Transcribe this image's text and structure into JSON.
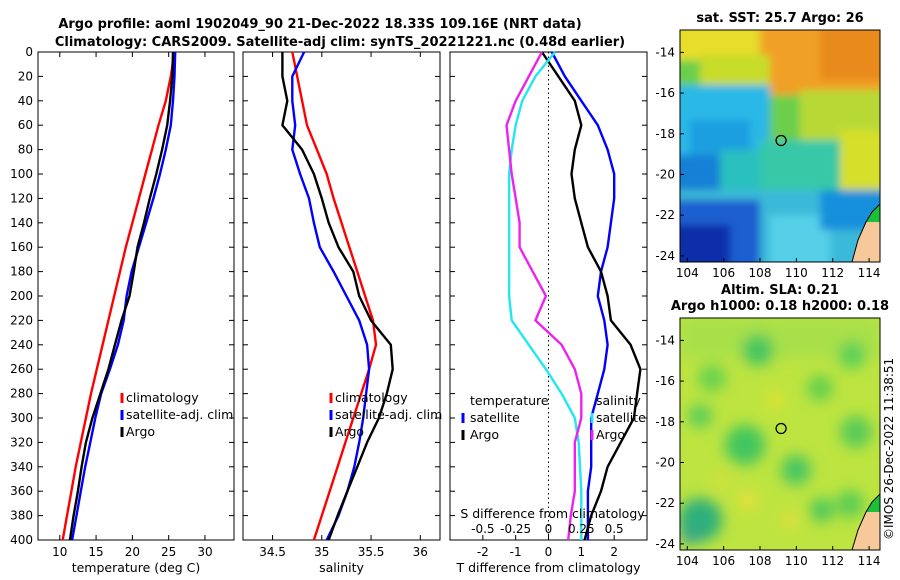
{
  "title_line1": "Argo profile: aoml 1902049_90 21-Dec-2022 18.33S 109.16E (NRT data)",
  "title_line2": "Climatology: CARS2009. Satellite-adj clim: synTS_20221221.nc (0.48d earlier)",
  "footer_stamp": "©IMOS 26-Dec-2022 11:38:51",
  "colors": {
    "climatology": "#ff0000",
    "satellite": "#0000ff",
    "argo": "#000000",
    "t_diff_sat": "#22e6f0",
    "s_diff_argo": "#ee22ee"
  },
  "chart_data": [
    {
      "type": "line",
      "panel": "temperature",
      "xlabel": "temperature (deg C)",
      "ylabel": "depth",
      "xlim": [
        7,
        34
      ],
      "ylim": [
        400,
        0
      ],
      "xticks": [
        10,
        15,
        20,
        25,
        30
      ],
      "yticks": [
        0,
        20,
        40,
        60,
        80,
        100,
        120,
        140,
        160,
        180,
        200,
        220,
        240,
        260,
        280,
        300,
        320,
        340,
        360,
        380,
        400
      ],
      "legend": [
        "climatology",
        "satellite-adj. clim",
        "Argo"
      ],
      "series": [
        {
          "name": "climatology",
          "color": "#ff0000",
          "depth": [
            0,
            20,
            40,
            60,
            80,
            100,
            120,
            140,
            160,
            180,
            200,
            220,
            240,
            260,
            280,
            300,
            320,
            340,
            360,
            380,
            400
          ],
          "values": [
            25.8,
            25.3,
            24.6,
            23.6,
            22.7,
            21.8,
            20.9,
            20.0,
            19.1,
            18.3,
            17.5,
            16.7,
            15.9,
            15.1,
            14.3,
            13.6,
            12.9,
            12.2,
            11.6,
            11.0,
            10.4
          ]
        },
        {
          "name": "satellite-adj. clim",
          "color": "#0000ff",
          "depth": [
            0,
            20,
            40,
            60,
            80,
            100,
            120,
            140,
            160,
            180,
            200,
            220,
            240,
            260,
            280,
            300,
            320,
            340,
            360,
            380,
            400
          ],
          "values": [
            25.9,
            25.8,
            25.6,
            25.3,
            24.6,
            23.8,
            22.9,
            21.9,
            20.9,
            19.9,
            19.2,
            18.8,
            18.0,
            16.9,
            15.7,
            14.9,
            14.2,
            13.5,
            12.9,
            12.3,
            11.7
          ]
        },
        {
          "name": "Argo",
          "color": "#000000",
          "depth": [
            0,
            20,
            40,
            60,
            80,
            100,
            120,
            140,
            160,
            180,
            200,
            220,
            240,
            260,
            280,
            300,
            320,
            340,
            360,
            380,
            400
          ],
          "values": [
            25.6,
            25.5,
            25.2,
            24.8,
            24.1,
            23.3,
            22.4,
            21.6,
            20.7,
            20.2,
            19.6,
            18.5,
            17.6,
            16.7,
            15.6,
            14.5,
            13.6,
            13.0,
            12.5,
            11.9,
            11.4
          ]
        }
      ]
    },
    {
      "type": "line",
      "panel": "salinity",
      "xlabel": "salinity",
      "xlim": [
        34.2,
        36.2
      ],
      "ylim": [
        400,
        0
      ],
      "xticks": [
        34.5,
        35,
        35.5,
        36
      ],
      "legend": [
        "climatology",
        "satellite-adj. clim",
        "Argo"
      ],
      "series": [
        {
          "name": "climatology",
          "color": "#ff0000",
          "depth": [
            0,
            20,
            40,
            60,
            80,
            100,
            120,
            140,
            160,
            180,
            200,
            220,
            240,
            260,
            280,
            300,
            320,
            340,
            360,
            380,
            400
          ],
          "values": [
            34.7,
            34.75,
            34.8,
            34.85,
            34.95,
            35.05,
            35.12,
            35.2,
            35.28,
            35.36,
            35.44,
            35.52,
            35.55,
            35.48,
            35.4,
            35.32,
            35.24,
            35.16,
            35.08,
            35.0,
            34.92
          ]
        },
        {
          "name": "satellite-adj. clim",
          "color": "#0000ff",
          "depth": [
            0,
            20,
            40,
            60,
            80,
            100,
            120,
            140,
            160,
            180,
            200,
            220,
            240,
            260,
            280,
            300,
            320,
            340,
            360,
            380,
            400
          ],
          "values": [
            34.82,
            34.7,
            34.7,
            34.73,
            34.7,
            34.78,
            34.87,
            34.92,
            34.98,
            35.12,
            35.25,
            35.38,
            35.46,
            35.48,
            35.45,
            35.42,
            35.38,
            35.33,
            35.26,
            35.17,
            35.05
          ]
        },
        {
          "name": "Argo",
          "color": "#000000",
          "depth": [
            0,
            20,
            40,
            60,
            80,
            100,
            120,
            140,
            160,
            180,
            200,
            220,
            240,
            260,
            280,
            300,
            320,
            340,
            360,
            380,
            400
          ],
          "values": [
            34.6,
            34.6,
            34.65,
            34.6,
            34.8,
            34.92,
            35.0,
            35.07,
            35.17,
            35.32,
            35.38,
            35.5,
            35.7,
            35.72,
            35.66,
            35.58,
            35.46,
            35.36,
            35.26,
            35.16,
            35.07
          ]
        }
      ]
    },
    {
      "type": "line",
      "panel": "difference",
      "xlabel": "T difference from climatology",
      "top_axis_label": "S difference from climatology",
      "xlim": [
        -3,
        3
      ],
      "ylim": [
        400,
        0
      ],
      "xticks": [
        -2,
        -1,
        0,
        1,
        2
      ],
      "top_xticks": [
        "-0.5",
        "-0.25",
        "0",
        "0.25",
        "0.5"
      ],
      "legend_temperature": {
        "heading": "temperature",
        "items": [
          "satellite",
          "Argo"
        ]
      },
      "legend_salinity": {
        "heading": "salinity",
        "items": [
          "satellite",
          "Argo"
        ]
      },
      "series": [
        {
          "name": "T satellite",
          "color": "#0000ff",
          "depth": [
            0,
            20,
            40,
            60,
            80,
            100,
            120,
            140,
            160,
            180,
            200,
            220,
            240,
            260,
            280,
            300,
            320,
            340,
            360,
            380,
            400
          ],
          "values": [
            0.1,
            0.5,
            1.0,
            1.5,
            1.8,
            2.0,
            2.0,
            1.9,
            1.8,
            1.6,
            1.5,
            1.7,
            1.8,
            1.7,
            1.5,
            1.3,
            1.3,
            1.3,
            1.2,
            1.2,
            1.2
          ]
        },
        {
          "name": "T Argo",
          "color": "#000000",
          "depth": [
            0,
            20,
            40,
            60,
            80,
            100,
            120,
            140,
            160,
            180,
            200,
            220,
            240,
            260,
            280,
            300,
            320,
            340,
            360,
            380,
            400
          ],
          "values": [
            -0.2,
            0.3,
            0.8,
            1.0,
            0.8,
            0.7,
            0.8,
            1.0,
            1.2,
            1.6,
            1.8,
            1.9,
            2.5,
            2.8,
            2.7,
            2.6,
            2.2,
            1.8,
            1.6,
            1.3,
            1.1
          ]
        },
        {
          "name": "S satellite",
          "color": "#22e6f0",
          "depth": [
            0,
            20,
            40,
            60,
            80,
            100,
            120,
            140,
            160,
            180,
            200,
            220,
            240,
            260,
            280,
            300,
            320,
            340,
            360,
            380,
            400
          ],
          "values": [
            0.05,
            -0.1,
            -0.2,
            -0.25,
            -0.28,
            -0.3,
            -0.3,
            -0.3,
            -0.3,
            -0.3,
            -0.3,
            -0.28,
            -0.15,
            -0.02,
            0.1,
            0.2,
            0.23,
            0.24,
            0.25,
            0.25,
            0.25
          ]
        },
        {
          "name": "S Argo",
          "color": "#ee22ee",
          "depth": [
            0,
            20,
            40,
            60,
            80,
            100,
            120,
            140,
            160,
            180,
            200,
            220,
            240,
            260,
            280,
            300,
            320,
            340,
            360,
            380,
            400
          ],
          "values": [
            -0.05,
            -0.15,
            -0.25,
            -0.32,
            -0.3,
            -0.28,
            -0.25,
            -0.22,
            -0.22,
            -0.12,
            -0.02,
            -0.1,
            0.1,
            0.2,
            0.25,
            0.25,
            0.2,
            0.2,
            0.2,
            0.17,
            0.15
          ]
        }
      ]
    },
    {
      "type": "heatmap",
      "panel": "sst_map",
      "title": "sat. SST: 25.7 Argo: 26",
      "xlim": [
        103.6,
        114.6
      ],
      "ylim": [
        -24.3,
        -12.9
      ],
      "xticks": [
        104,
        106,
        108,
        110,
        112,
        114
      ],
      "yticks": [
        -14,
        -16,
        -18,
        -20,
        -22,
        -24
      ],
      "float_position": {
        "lon": 109.16,
        "lat": -18.33
      }
    },
    {
      "type": "heatmap",
      "panel": "sla_map",
      "title_line1": "Altim. SLA: 0.21",
      "title_line2": "Argo h1000: 0.18 h2000: 0.18",
      "xlim": [
        103.6,
        114.6
      ],
      "ylim": [
        -24.3,
        -12.9
      ],
      "xticks": [
        104,
        106,
        108,
        110,
        112,
        114
      ],
      "yticks": [
        -14,
        -16,
        -18,
        -20,
        -22,
        -24
      ],
      "float_position": {
        "lon": 109.16,
        "lat": -18.33
      }
    }
  ]
}
